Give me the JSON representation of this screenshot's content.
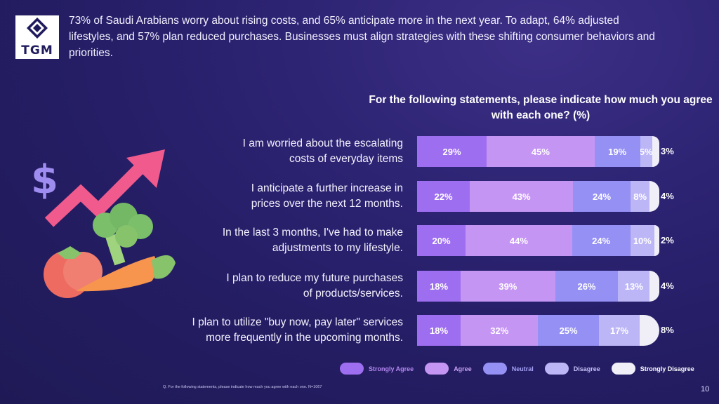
{
  "logo": {
    "text": "TGM"
  },
  "intro_text": "73% of Saudi Arabians worry about rising costs, and 65% anticipate more in the next year. To adapt, 64% adjusted lifestyles, and 57% plan reduced purchases. Businesses must align strategies with these shifting consumer behaviors and priorities.",
  "chart_data": {
    "type": "bar",
    "orientation": "horizontal",
    "stacked": true,
    "title": "For the following statements, please indicate how much you agree with each one? (%)",
    "categories": [
      "I am worried about the escalating costs of everyday items",
      "I anticipate a further increase in prices over the next 12 months.",
      "In the last 3 months, I've had to make adjustments to my lifestyle.",
      "I plan to reduce my future purchases of products/services.",
      "I plan to utilize \"buy now, pay later\" services more frequently in the upcoming months."
    ],
    "category_lines": [
      [
        "I am worried about the escalating",
        "costs of everyday items"
      ],
      [
        "I anticipate a further increase in",
        "prices over the next 12 months."
      ],
      [
        "In the last 3 months, I've had to make",
        "adjustments to my lifestyle."
      ],
      [
        "I plan to reduce my future purchases",
        "of products/services."
      ],
      [
        "I plan to utilize \"buy now, pay later\" services",
        "more frequently in the upcoming months."
      ]
    ],
    "series": [
      {
        "name": "Strongly Agree",
        "color": "#9e6ef0",
        "values": [
          29,
          22,
          20,
          18,
          18
        ]
      },
      {
        "name": "Agree",
        "color": "#c595f4",
        "values": [
          45,
          43,
          44,
          39,
          32
        ]
      },
      {
        "name": "Neutral",
        "color": "#9590f4",
        "values": [
          19,
          24,
          24,
          26,
          25
        ]
      },
      {
        "name": "Disagree",
        "color": "#bcb6f6",
        "values": [
          5,
          8,
          10,
          13,
          17
        ]
      },
      {
        "name": "Strongly Disagree",
        "color": "#f0eff8",
        "values": [
          3,
          4,
          2,
          4,
          8
        ]
      }
    ],
    "value_suffix": "%"
  },
  "footnote": "Q. For the following statements, please indicate how much you agree with each one. N=1067",
  "page_number": "10"
}
